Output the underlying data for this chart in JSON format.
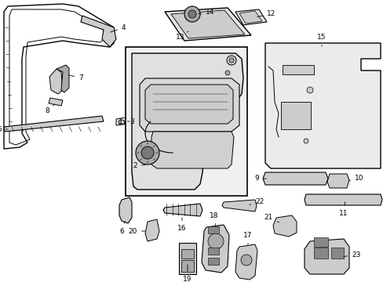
{
  "bg_color": "#ffffff",
  "line_color": "#000000",
  "gray_fill": "#e8e8e8",
  "dark_gray": "#aaaaaa",
  "mid_gray": "#cccccc",
  "light_gray": "#f0f0f0"
}
